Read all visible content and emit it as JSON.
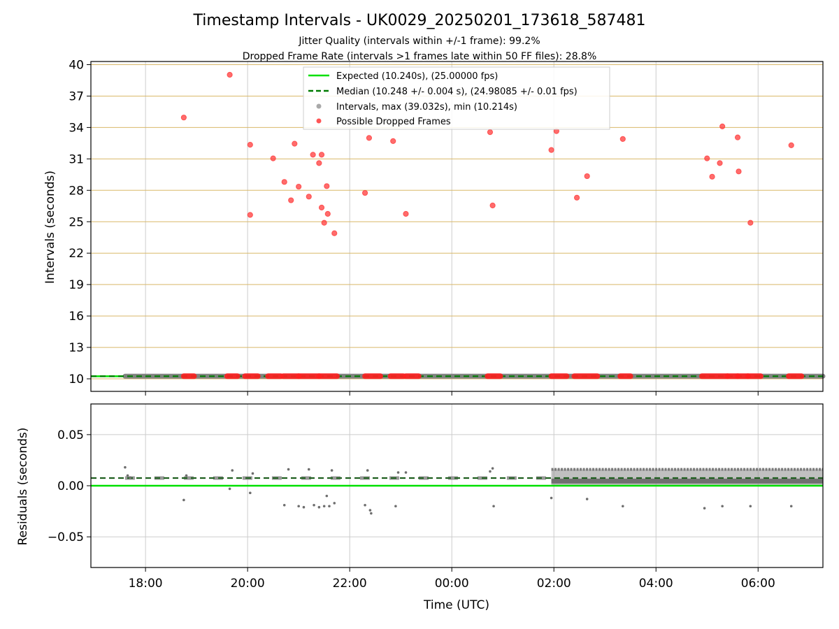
{
  "chart_data": {
    "type": "scatter",
    "title": "Timestamp Intervals - UK0029_20250201_173618_587481",
    "subtitles": [
      "Jitter Quality (intervals within +/-1 frame): 99.2%",
      "Dropped Frame Rate (intervals >1 frames late within 50 FF files): 28.8%"
    ],
    "xlabel": "Time (UTC)",
    "x_range_hours": [
      -1.07,
      13.27
    ],
    "x_tick_hours": [
      0,
      2,
      4,
      6,
      8,
      10,
      12
    ],
    "x_tick_labels": [
      "18:00",
      "20:00",
      "22:00",
      "00:00",
      "02:00",
      "04:00",
      "06:00"
    ],
    "top_panel": {
      "ylabel": "Intervals (seconds)",
      "ylim": [
        8.8,
        40.3
      ],
      "y_ticks": [
        10,
        13,
        16,
        19,
        22,
        25,
        28,
        31,
        34,
        37,
        40
      ],
      "y_tick_labels": [
        "10",
        "13",
        "16",
        "19",
        "22",
        "25",
        "28",
        "31",
        "34",
        "37",
        "40"
      ],
      "grid": "on",
      "legend_position": "top-center",
      "legend": [
        {
          "label": "Expected (10.240s), (25.00000 fps)",
          "style": "solid",
          "color": "#00e000"
        },
        {
          "label": "Median (10.248 +/- 0.004 s), (24.98085 +/- 0.01 fps)",
          "style": "dashed",
          "color": "#007a00"
        },
        {
          "label": "Intervals, max (39.032s), min (10.214s)",
          "style": "marker",
          "color": "#a9a9a9"
        },
        {
          "label": "Possible Dropped Frames",
          "style": "marker",
          "color": "#ff5555"
        }
      ],
      "expected_interval": 10.24,
      "median_interval": 10.248,
      "interval_band": {
        "x_start": -0.4,
        "x_end": 13.27,
        "y": 10.248
      },
      "dropped_frames": [
        {
          "x": 0.75,
          "y": 34.95
        },
        {
          "x": 1.65,
          "y": 39.03
        },
        {
          "x": 2.05,
          "y": 32.35
        },
        {
          "x": 2.05,
          "y": 25.65
        },
        {
          "x": 2.5,
          "y": 31.05
        },
        {
          "x": 2.72,
          "y": 28.8
        },
        {
          "x": 2.85,
          "y": 27.05
        },
        {
          "x": 2.92,
          "y": 32.45
        },
        {
          "x": 3.0,
          "y": 28.35
        },
        {
          "x": 3.2,
          "y": 27.4
        },
        {
          "x": 3.28,
          "y": 31.4
        },
        {
          "x": 3.4,
          "y": 30.6
        },
        {
          "x": 3.45,
          "y": 31.4
        },
        {
          "x": 3.45,
          "y": 26.35
        },
        {
          "x": 3.5,
          "y": 24.9
        },
        {
          "x": 3.55,
          "y": 28.4
        },
        {
          "x": 3.57,
          "y": 25.75
        },
        {
          "x": 3.7,
          "y": 23.9
        },
        {
          "x": 4.3,
          "y": 27.75
        },
        {
          "x": 4.38,
          "y": 33.0
        },
        {
          "x": 4.85,
          "y": 32.7
        },
        {
          "x": 5.1,
          "y": 25.75
        },
        {
          "x": 6.75,
          "y": 33.55
        },
        {
          "x": 6.8,
          "y": 26.55
        },
        {
          "x": 7.95,
          "y": 31.85
        },
        {
          "x": 8.05,
          "y": 33.65
        },
        {
          "x": 8.45,
          "y": 27.3
        },
        {
          "x": 8.65,
          "y": 29.35
        },
        {
          "x": 9.35,
          "y": 32.9
        },
        {
          "x": 11.0,
          "y": 31.05
        },
        {
          "x": 11.1,
          "y": 29.3
        },
        {
          "x": 11.25,
          "y": 30.6
        },
        {
          "x": 11.3,
          "y": 34.1
        },
        {
          "x": 11.6,
          "y": 33.05
        },
        {
          "x": 11.62,
          "y": 29.8
        },
        {
          "x": 11.85,
          "y": 24.9
        },
        {
          "x": 12.65,
          "y": 32.3
        }
      ],
      "dropped_clusters_at_median": [
        [
          0.75,
          0.95
        ],
        [
          1.6,
          1.8
        ],
        [
          1.95,
          2.2
        ],
        [
          2.4,
          2.65
        ],
        [
          2.7,
          3.0
        ],
        [
          3.0,
          3.4
        ],
        [
          3.4,
          3.75
        ],
        [
          4.3,
          4.6
        ],
        [
          4.8,
          5.05
        ],
        [
          5.1,
          5.35
        ],
        [
          6.7,
          6.95
        ],
        [
          7.95,
          8.25
        ],
        [
          8.4,
          8.85
        ],
        [
          9.3,
          9.5
        ],
        [
          10.9,
          11.4
        ],
        [
          11.4,
          11.6
        ],
        [
          11.6,
          11.8
        ],
        [
          11.8,
          12.05
        ],
        [
          12.6,
          12.85
        ]
      ]
    },
    "bottom_panel": {
      "ylabel": "Residuals (seconds)",
      "ylim": [
        -0.08,
        0.08
      ],
      "y_ticks": [
        -0.05,
        0.0,
        0.05
      ],
      "y_tick_labels": [
        "−0.05",
        "0.00",
        "0.05"
      ],
      "grid": "on",
      "expected_residual": 0.0,
      "median_residual": 0.0075,
      "residual_samples": [
        {
          "x": -0.4,
          "y": 0.018
        },
        {
          "x": -0.35,
          "y": 0.01
        },
        {
          "x": -0.3,
          "y": 0.008
        },
        {
          "x": 0.75,
          "y": -0.014
        },
        {
          "x": 0.8,
          "y": 0.01
        },
        {
          "x": 1.65,
          "y": -0.003
        },
        {
          "x": 1.7,
          "y": 0.015
        },
        {
          "x": 2.05,
          "y": -0.007
        },
        {
          "x": 2.1,
          "y": 0.012
        },
        {
          "x": 2.72,
          "y": -0.019
        },
        {
          "x": 2.8,
          "y": 0.016
        },
        {
          "x": 3.0,
          "y": -0.02
        },
        {
          "x": 3.1,
          "y": -0.021
        },
        {
          "x": 3.2,
          "y": 0.016
        },
        {
          "x": 3.3,
          "y": -0.019
        },
        {
          "x": 3.4,
          "y": -0.021
        },
        {
          "x": 3.5,
          "y": -0.02
        },
        {
          "x": 3.55,
          "y": -0.01
        },
        {
          "x": 3.6,
          "y": -0.02
        },
        {
          "x": 3.65,
          "y": 0.015
        },
        {
          "x": 3.7,
          "y": -0.017
        },
        {
          "x": 4.3,
          "y": -0.019
        },
        {
          "x": 4.35,
          "y": 0.015
        },
        {
          "x": 4.4,
          "y": -0.024
        },
        {
          "x": 4.42,
          "y": -0.027
        },
        {
          "x": 4.9,
          "y": -0.02
        },
        {
          "x": 4.95,
          "y": 0.013
        },
        {
          "x": 5.1,
          "y": 0.013
        },
        {
          "x": 6.75,
          "y": 0.014
        },
        {
          "x": 6.8,
          "y": 0.017
        },
        {
          "x": 6.82,
          "y": -0.02
        },
        {
          "x": 7.95,
          "y": -0.012
        },
        {
          "x": 8.65,
          "y": -0.013
        },
        {
          "x": 9.35,
          "y": -0.02
        },
        {
          "x": 10.95,
          "y": -0.022
        },
        {
          "x": 11.3,
          "y": -0.02
        },
        {
          "x": 11.85,
          "y": -0.02
        },
        {
          "x": 12.65,
          "y": -0.02
        }
      ],
      "dense_region": {
        "x_start": 7.95,
        "x_end": 13.27,
        "y_min": 0.0,
        "y_max": 0.016
      }
    }
  }
}
